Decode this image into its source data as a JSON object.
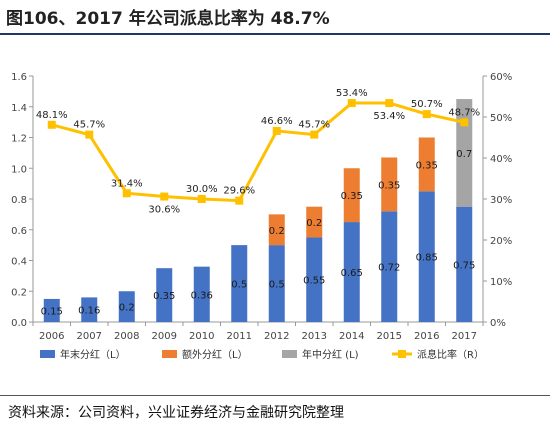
{
  "header": {
    "title": "图106、2017 年公司派息比率为 48.7%"
  },
  "footer": {
    "source": "资料来源：公司资料，兴业证券经济与金融研究院整理"
  },
  "chart_data": {
    "type": "bar",
    "stacked": true,
    "categories": [
      "2006",
      "2007",
      "2008",
      "2009",
      "2010",
      "2011",
      "2012",
      "2013",
      "2014",
      "2015",
      "2016",
      "2017"
    ],
    "series": [
      {
        "name": "年末分红（L）",
        "axis": "left",
        "color": "#4472c4",
        "values": [
          0.15,
          0.16,
          0.2,
          0.35,
          0.36,
          0.5,
          0.5,
          0.55,
          0.65,
          0.72,
          0.85,
          0.75
        ],
        "labels": [
          "0.15",
          "0.16",
          "0.2",
          "0.35",
          "0.36",
          "0.5",
          "0.5",
          "0.55",
          "0.65",
          "0.72",
          "0.85",
          "0.75"
        ]
      },
      {
        "name": "额外分红（L）",
        "axis": "left",
        "color": "#ed7d31",
        "values": [
          null,
          null,
          null,
          null,
          null,
          null,
          0.2,
          0.2,
          0.35,
          0.35,
          0.35,
          null
        ],
        "labels": [
          "",
          "",
          "",
          "",
          "",
          "",
          "0.2",
          "0.2",
          "0.35",
          "0.35",
          "0.35",
          ""
        ]
      },
      {
        "name": "年中分红 (L)",
        "axis": "left",
        "color": "#a5a5a5",
        "values": [
          null,
          null,
          null,
          null,
          null,
          null,
          null,
          null,
          null,
          null,
          null,
          0.7
        ],
        "labels": [
          "",
          "",
          "",
          "",
          "",
          "",
          "",
          "",
          "",
          "",
          "",
          "0.7"
        ]
      },
      {
        "name": "派息比率（R）",
        "axis": "right",
        "type": "line",
        "color": "#ffc000",
        "values": [
          48.1,
          45.7,
          31.4,
          30.6,
          30.0,
          29.6,
          46.6,
          45.7,
          53.4,
          53.4,
          50.7,
          48.7
        ],
        "labels": [
          "48.1%",
          "45.7%",
          "31.4%",
          "30.6%",
          "30.0%",
          "29.6%",
          "46.6%",
          "45.7%",
          "53.4%",
          "53.4%",
          "50.7%",
          "48.7%"
        ],
        "label_pos": [
          "above",
          "above",
          "above",
          "below",
          "above",
          "above",
          "above",
          "above",
          "above",
          "below",
          "above",
          "above"
        ]
      }
    ],
    "y_left": {
      "min": 0,
      "max": 1.6,
      "ticks": [
        "0.0",
        "0.2",
        "0.4",
        "0.6",
        "0.8",
        "1.0",
        "1.2",
        "1.4",
        "1.6"
      ]
    },
    "y_right": {
      "min": 0,
      "max": 60,
      "ticks": [
        "0%",
        "10%",
        "20%",
        "30%",
        "40%",
        "50%",
        "60%"
      ]
    },
    "legend_position": "bottom",
    "grid": false
  }
}
